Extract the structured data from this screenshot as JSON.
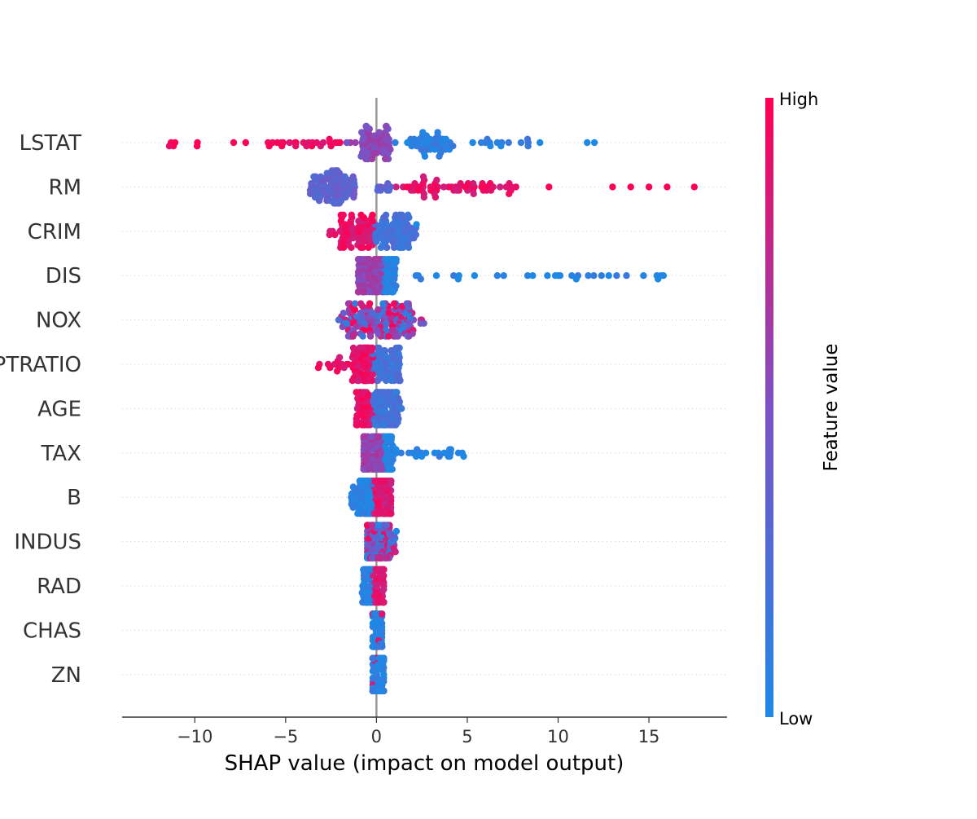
{
  "chart_data": {
    "type": "scatter",
    "subtype": "beeswarm",
    "xlabel": "SHAP value (impact on model output)",
    "xlim": [
      -14,
      19.3
    ],
    "xticks": [
      -10,
      -5,
      0,
      5,
      10,
      15
    ],
    "xtick_labels": [
      "−10",
      "−5",
      "0",
      "5",
      "10",
      "15"
    ],
    "grid": "dotted horizontal row lines",
    "colorbar": {
      "title": "Feature value",
      "high_label": "High",
      "low_label": "Low",
      "high_color": "#ff0052",
      "low_color": "#1e88e5"
    },
    "features": [
      {
        "name": "LSTAT",
        "range": [
          -12.6,
          12.2
        ],
        "skew": "positive-high-left",
        "outliers": [
          [
            11.6,
            0.0
          ],
          [
            12.0,
            0.0
          ],
          [
            9.0,
            0.0
          ]
        ]
      },
      {
        "name": "RM",
        "range": [
          -4.5,
          17.6
        ],
        "skew": "high-right",
        "outliers": [
          [
            9.5,
            1.0
          ],
          [
            13.0,
            1.0
          ],
          [
            14.0,
            1.0
          ],
          [
            15.0,
            1.0
          ],
          [
            16.0,
            1.0
          ],
          [
            17.5,
            1.0
          ]
        ]
      },
      {
        "name": "CRIM",
        "range": [
          -2.6,
          2.2
        ],
        "skew": "high-left",
        "outliers": [
          [
            2.2,
            0.0
          ]
        ]
      },
      {
        "name": "DIS",
        "range": [
          -1.0,
          15.8
        ],
        "skew": "low-right",
        "outliers": [
          [
            3.3,
            0.0
          ],
          [
            4.5,
            0.0
          ],
          [
            5.4,
            0.0
          ],
          [
            8.6,
            0.0
          ],
          [
            10.0,
            0.0
          ],
          [
            11.0,
            0.0
          ],
          [
            15.5,
            0.0
          ],
          [
            15.8,
            0.0
          ]
        ]
      },
      {
        "name": "NOX",
        "range": [
          -2.1,
          2.7
        ],
        "skew": "mixed",
        "outliers": []
      },
      {
        "name": "PTRATIO",
        "range": [
          -3.2,
          1.3
        ],
        "skew": "high-left",
        "outliers": [
          [
            -3.2,
            1.0
          ]
        ]
      },
      {
        "name": "AGE",
        "range": [
          -1.1,
          1.4
        ],
        "skew": "high-left",
        "outliers": []
      },
      {
        "name": "TAX",
        "range": [
          -0.7,
          4.8
        ],
        "skew": "low-right",
        "outliers": [
          [
            3.2,
            0.0
          ],
          [
            4.8,
            0.0
          ]
        ]
      },
      {
        "name": "B",
        "range": [
          -1.4,
          0.8
        ],
        "skew": "low-left",
        "outliers": []
      },
      {
        "name": "INDUS",
        "range": [
          -0.5,
          1.1
        ],
        "skew": "mixed",
        "outliers": [
          [
            1.1,
            0.0
          ]
        ]
      },
      {
        "name": "RAD",
        "range": [
          -0.8,
          0.4
        ],
        "skew": "low-left",
        "outliers": []
      },
      {
        "name": "CHAS",
        "range": [
          -0.2,
          0.3
        ],
        "skew": "low-center",
        "outliers": []
      },
      {
        "name": "ZN",
        "range": [
          -0.2,
          0.4
        ],
        "skew": "low-center",
        "outliers": []
      }
    ]
  }
}
